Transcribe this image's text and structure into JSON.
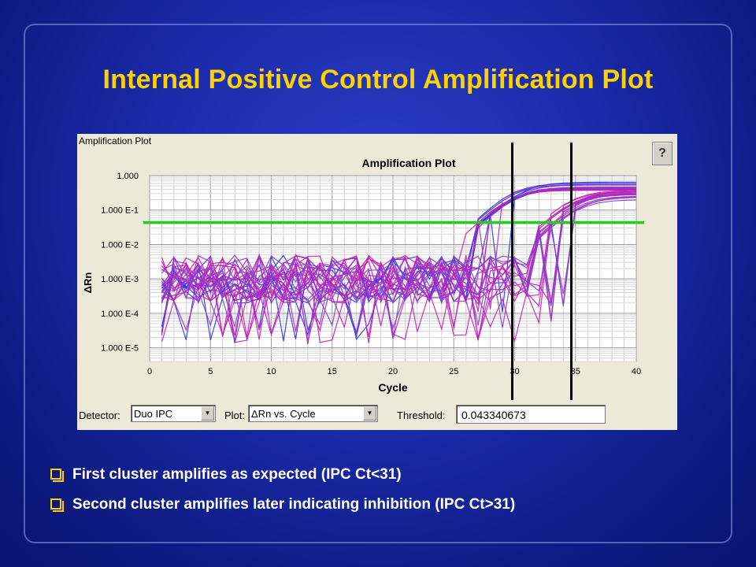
{
  "slide": {
    "title": "Internal Positive Control Amplification Plot",
    "bullets": [
      "First cluster amplifies as expected (IPC Ct<31)",
      "Second cluster amplifies later indicating inhibition (IPC Ct>31)"
    ]
  },
  "window": {
    "title": "Amplification Plot",
    "help_label": "?",
    "detector_label": "Detector:",
    "detector_value": "Duo IPC",
    "plot_label": "Plot:",
    "plot_value": "ΔRn vs. Cycle",
    "threshold_label": "Threshold:",
    "threshold_value": "0.043340673"
  },
  "chart_data": {
    "type": "line",
    "title": "Amplification Plot",
    "xlabel": "Cycle",
    "ylabel": "ΔRn",
    "xlim": [
      0,
      40
    ],
    "ylim": [
      4e-06,
      1.0
    ],
    "yscale": "log",
    "x_ticks": [
      "0",
      "5",
      "10",
      "15",
      "20",
      "25",
      "30",
      "35",
      "40"
    ],
    "y_ticks": [
      "1.000",
      "1.000 E-1",
      "1.000 E-2",
      "1.000 E-3",
      "1.000 E-4",
      "1.000 E-5"
    ],
    "y_tick_values": [
      1.0,
      0.1,
      0.01,
      0.001,
      0.0001,
      1e-05
    ],
    "grid": true,
    "threshold": 0.043340673,
    "threshold_color": "#22cc22",
    "marker_lines_cycle": [
      30,
      34.8
    ],
    "clusters": [
      {
        "color": "#2a35e6",
        "ct": 29.7,
        "plateau": 0.52,
        "count": 8
      },
      {
        "color": "#c020b8",
        "ct": 29.5,
        "plateau": 0.48,
        "count": 5
      },
      {
        "color": "#c020b8",
        "ct": 34.6,
        "plateau": 0.3,
        "count": 12
      },
      {
        "color": "#8040d0",
        "ct": 34.9,
        "plateau": 0.25,
        "count": 5
      }
    ]
  }
}
